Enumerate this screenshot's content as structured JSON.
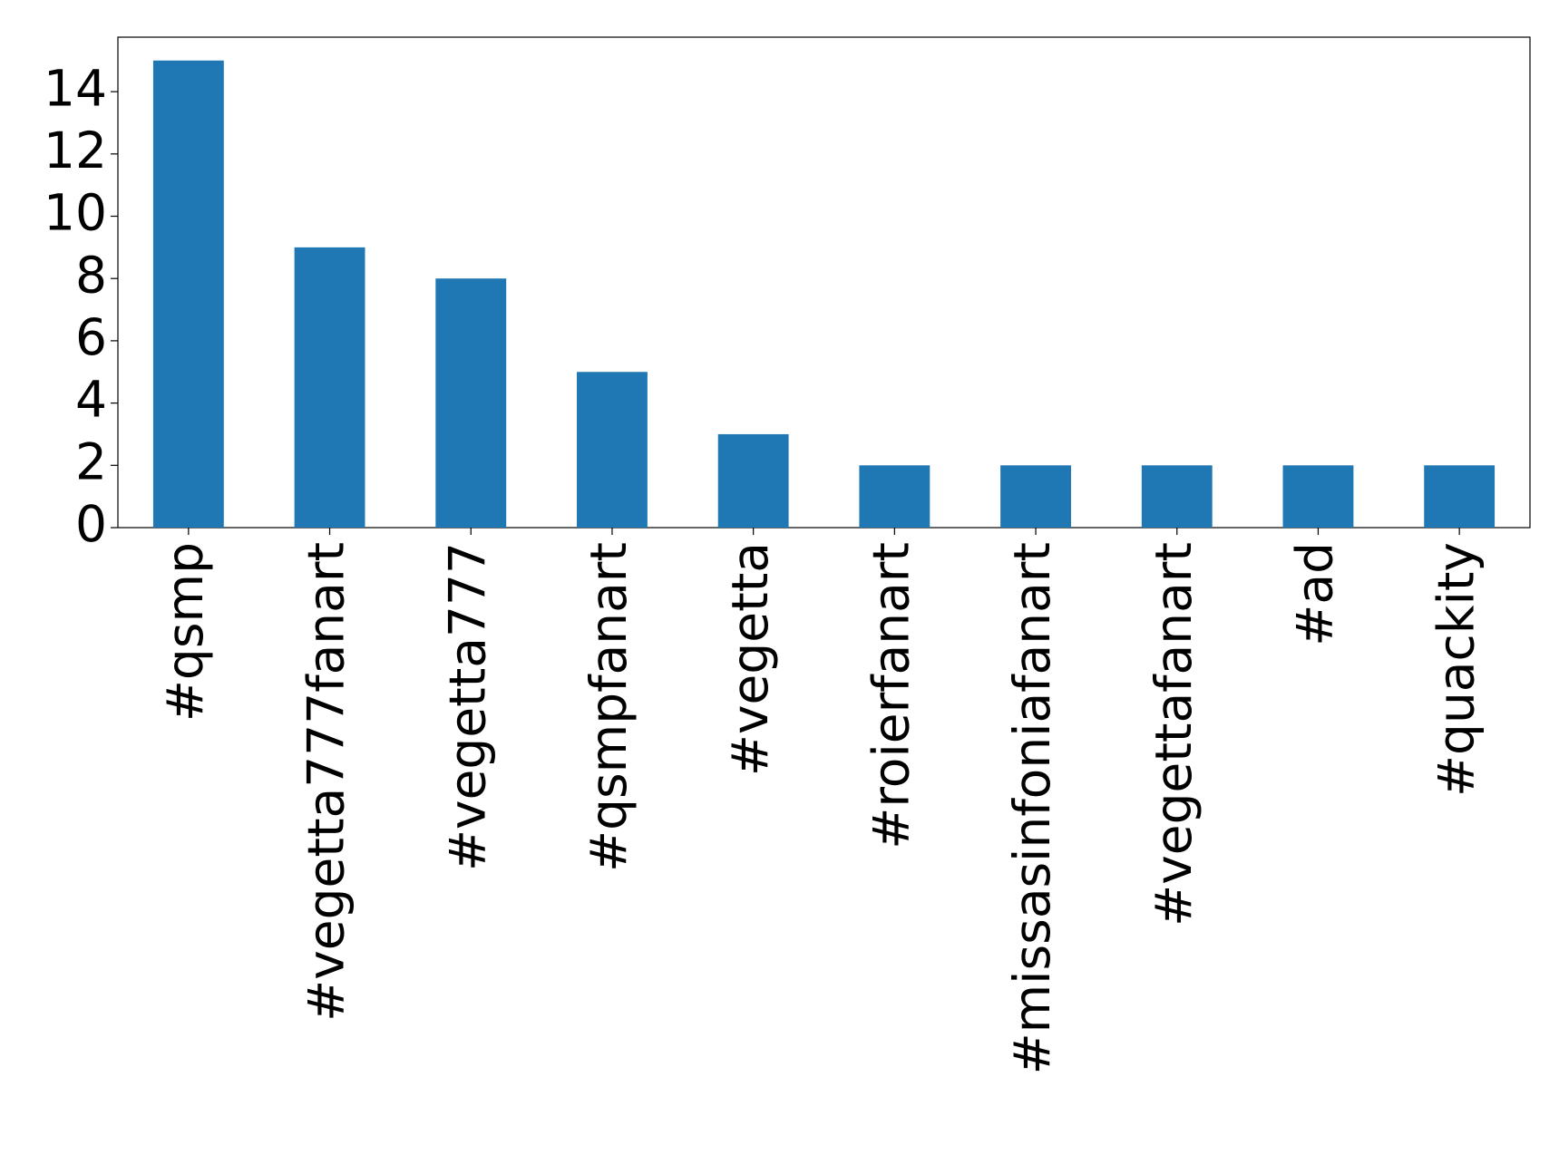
{
  "chart_data": {
    "type": "bar",
    "categories": [
      "#qsmp",
      "#vegetta777fanart",
      "#vegetta777",
      "#qsmpfanart",
      "#vegetta",
      "#roierfanart",
      "#missasinfoniafanart",
      "#vegettafanart",
      "#ad",
      "#quackity"
    ],
    "values": [
      15,
      9,
      8,
      5,
      3,
      2,
      2,
      2,
      2,
      2
    ],
    "color": "#1f77b4",
    "ylim": [
      0,
      15.75
    ],
    "yticks": [
      0,
      2,
      4,
      6,
      8,
      10,
      12,
      14
    ],
    "grid": false
  }
}
